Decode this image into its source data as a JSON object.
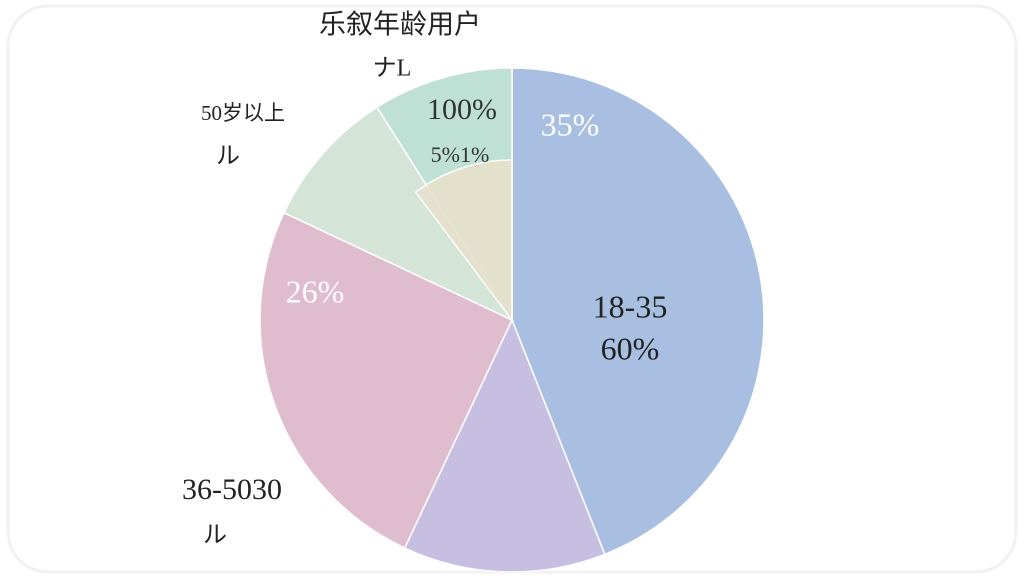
{
  "chart_data": {
    "type": "pie",
    "title": "乐叙年龄用户",
    "values": [
      44,
      13,
      25,
      9,
      9
    ],
    "colors": [
      "#a8bfe2",
      "#c6bfe2",
      "#e0bccf",
      "#d4e4d7",
      "#bfe1d5"
    ],
    "annotations": [
      "ナL",
      "50岁以上",
      "ル",
      "100%",
      "5%1%",
      "35%",
      "18-35",
      "60%",
      "26%",
      "36-5030",
      "ル"
    ]
  }
}
